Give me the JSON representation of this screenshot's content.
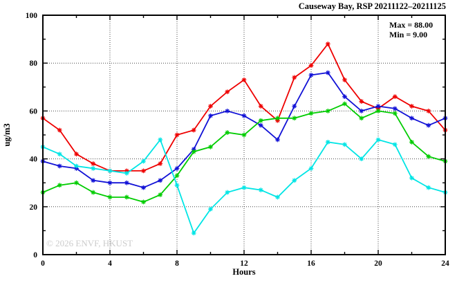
{
  "window": {
    "background": "#ffffff"
  },
  "chart_data": {
    "type": "line",
    "title": "Causeway Bay, RSP 20211122–20211125",
    "annotation": {
      "max_label": "Max = 88.00",
      "min_label": "Min =  9.00",
      "max_value": 88.0,
      "min_value": 9.0
    },
    "xlabel": "Hours",
    "ylabel": "ug/m3",
    "watermark": "© 2026 ENVF, HKUST",
    "xlim": [
      0,
      24
    ],
    "ylim": [
      0,
      100
    ],
    "x_major_ticks": [
      0,
      4,
      8,
      12,
      16,
      20,
      24
    ],
    "x_tick_labels": [
      "0",
      "4",
      "8",
      "12",
      "16",
      "20",
      "24"
    ],
    "x_minor_ticks": [
      2,
      6,
      10,
      14,
      18,
      22
    ],
    "y_major_ticks": [
      0,
      20,
      40,
      60,
      80,
      100
    ],
    "y_tick_labels": [
      "0",
      "20",
      "40",
      "60",
      "80",
      "100"
    ],
    "y_minor_ticks": [
      10,
      30,
      50,
      70,
      90
    ],
    "grid": "dotted lines at interior major ticks",
    "legend_position": "none",
    "marker_style": "asterisk",
    "x_values": [
      0,
      1,
      2,
      3,
      4,
      5,
      6,
      7,
      8,
      9,
      10,
      11,
      12,
      13,
      14,
      15,
      16,
      17,
      18,
      19,
      20,
      21,
      22,
      23,
      24
    ],
    "series": [
      {
        "name": "series-red",
        "color": "#ee0000",
        "values": [
          57,
          52,
          42,
          38,
          35,
          35,
          35,
          38,
          50,
          52,
          62,
          68,
          73,
          62,
          56,
          74,
          79,
          88,
          73,
          64,
          61,
          66,
          62,
          60,
          52
        ]
      },
      {
        "name": "series-blue",
        "color": "#1111d6",
        "values": [
          39,
          37,
          36,
          31,
          30,
          30,
          28,
          31,
          36,
          44,
          58,
          60,
          58,
          54,
          48,
          62,
          75,
          76,
          66,
          60,
          62,
          61,
          57,
          54,
          57
        ]
      },
      {
        "name": "series-green",
        "color": "#00cc00",
        "values": [
          26,
          29,
          30,
          26,
          24,
          24,
          22,
          25,
          33,
          43,
          45,
          51,
          50,
          56,
          57,
          57,
          59,
          60,
          63,
          57,
          60,
          59,
          47,
          41,
          39
        ]
      },
      {
        "name": "series-cyan",
        "color": "#00e5e5",
        "values": [
          45,
          42,
          37,
          36,
          35,
          34,
          39,
          48,
          29,
          9,
          19,
          26,
          28,
          27,
          24,
          31,
          36,
          47,
          46,
          40,
          48,
          46,
          32,
          28,
          26
        ]
      }
    ]
  }
}
